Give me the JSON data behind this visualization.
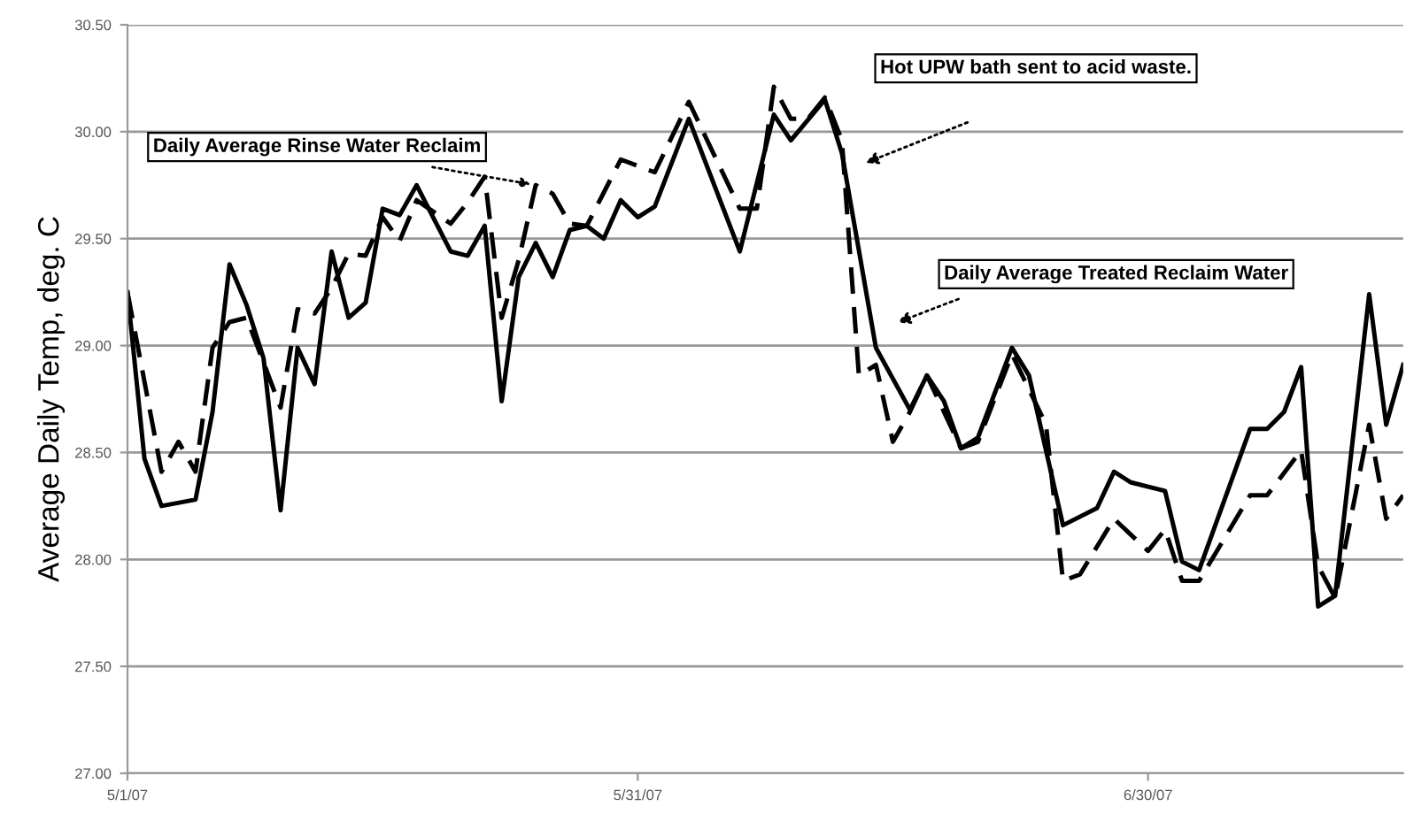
{
  "chart_data": {
    "type": "line",
    "ylabel": "Average Daily Temp, deg. C",
    "xlim": [
      "2007-05-01",
      "2007-07-15"
    ],
    "xticks": [
      {
        "value": "2007-05-01",
        "label": "5/1/07"
      },
      {
        "value": "2007-05-31",
        "label": "5/31/07"
      },
      {
        "value": "2007-06-30",
        "label": "6/30/07"
      }
    ],
    "ylim": [
      27,
      30.5
    ],
    "yticks": [
      {
        "value": 27,
        "label": "27.00"
      },
      {
        "value": 27.5,
        "label": "27.50"
      },
      {
        "value": 28,
        "label": "28.00"
      },
      {
        "value": 28.5,
        "label": "28.50"
      },
      {
        "value": 29,
        "label": "29.00"
      },
      {
        "value": 29.5,
        "label": "29.50"
      },
      {
        "value": 30,
        "label": "30.00"
      },
      {
        "value": 30.5,
        "label": "30.50"
      }
    ],
    "grid": "y",
    "legend": false,
    "series": [
      {
        "color": "#000000",
        "line_style": "solid",
        "x": [
          "2007-05-01",
          "2007-05-02",
          "2007-05-03",
          "2007-05-05",
          "2007-05-06",
          "2007-05-07",
          "2007-05-08",
          "2007-05-09",
          "2007-05-10",
          "2007-05-11",
          "2007-05-12",
          "2007-05-13",
          "2007-05-14",
          "2007-05-15",
          "2007-05-16",
          "2007-05-17",
          "2007-05-18",
          "2007-05-20",
          "2007-05-21",
          "2007-05-22",
          "2007-05-23",
          "2007-05-24",
          "2007-05-25",
          "2007-05-26",
          "2007-05-27",
          "2007-05-28",
          "2007-05-29",
          "2007-05-30",
          "2007-05-31",
          "2007-06-01",
          "2007-06-03",
          "2007-06-06",
          "2007-06-08",
          "2007-06-09",
          "2007-06-11",
          "2007-06-12",
          "2007-06-14",
          "2007-06-16",
          "2007-06-17",
          "2007-06-18",
          "2007-06-19",
          "2007-06-20",
          "2007-06-22",
          "2007-06-23",
          "2007-06-25",
          "2007-06-27",
          "2007-06-28",
          "2007-06-29",
          "2007-07-01",
          "2007-07-02",
          "2007-07-03",
          "2007-07-06",
          "2007-07-07",
          "2007-07-08",
          "2007-07-09",
          "2007-07-10",
          "2007-07-11",
          "2007-07-13",
          "2007-07-14",
          "2007-07-15"
        ],
        "values": [
          29.25,
          28.47,
          28.25,
          28.28,
          28.69,
          29.38,
          29.19,
          28.94,
          28.23,
          28.99,
          28.82,
          29.44,
          29.13,
          29.2,
          29.64,
          29.61,
          29.75,
          29.44,
          29.42,
          29.56,
          28.74,
          29.32,
          29.48,
          29.32,
          29.54,
          29.56,
          29.5,
          29.68,
          29.6,
          29.65,
          30.06,
          29.44,
          30.08,
          29.96,
          30.15,
          29.9,
          28.99,
          28.7,
          28.86,
          28.74,
          28.52,
          28.57,
          28.99,
          28.86,
          28.16,
          28.24,
          28.41,
          28.36,
          28.32,
          27.99,
          27.95,
          28.61,
          28.61,
          28.69,
          28.9,
          27.78,
          27.83,
          29.24,
          28.63,
          28.91
        ]
      },
      {
        "color": "#000000",
        "line_style": "dashed",
        "x": [
          "2007-05-01",
          "2007-05-03",
          "2007-05-04",
          "2007-05-05",
          "2007-05-06",
          "2007-05-07",
          "2007-05-08",
          "2007-05-10",
          "2007-05-11",
          "2007-05-12",
          "2007-05-13",
          "2007-05-14",
          "2007-05-15",
          "2007-05-16",
          "2007-05-17",
          "2007-05-18",
          "2007-05-20",
          "2007-05-21",
          "2007-05-22",
          "2007-05-23",
          "2007-05-24",
          "2007-05-25",
          "2007-05-26",
          "2007-05-27",
          "2007-05-28",
          "2007-05-30",
          "2007-06-01",
          "2007-06-03",
          "2007-06-06",
          "2007-06-07",
          "2007-06-08",
          "2007-06-09",
          "2007-06-10",
          "2007-06-11",
          "2007-06-12",
          "2007-06-13",
          "2007-06-14",
          "2007-06-15",
          "2007-06-16",
          "2007-06-17",
          "2007-06-19",
          "2007-06-20",
          "2007-06-22",
          "2007-06-24",
          "2007-06-25",
          "2007-06-26",
          "2007-06-28",
          "2007-06-30",
          "2007-07-01",
          "2007-07-02",
          "2007-07-03",
          "2007-07-06",
          "2007-07-07",
          "2007-07-09",
          "2007-07-10",
          "2007-07-11",
          "2007-07-13",
          "2007-07-14",
          "2007-07-15"
        ],
        "values": [
          29.25,
          28.41,
          28.55,
          28.41,
          28.99,
          29.11,
          29.13,
          28.71,
          29.17,
          29.15,
          29.27,
          29.43,
          29.42,
          29.6,
          29.49,
          29.68,
          29.57,
          29.67,
          29.79,
          29.13,
          29.4,
          29.75,
          29.71,
          29.57,
          29.56,
          29.87,
          29.81,
          30.14,
          29.64,
          29.64,
          30.21,
          30.06,
          30.06,
          30.16,
          29.96,
          28.86,
          28.91,
          28.55,
          28.69,
          28.86,
          28.52,
          28.55,
          28.96,
          28.63,
          27.9,
          27.93,
          28.19,
          28.04,
          28.14,
          27.9,
          27.9,
          28.3,
          28.3,
          28.51,
          27.97,
          27.82,
          28.63,
          28.19,
          28.3
        ]
      }
    ],
    "annotations": [
      {
        "text": "Daily Average Rinse Water Reclaim",
        "x": "2007-05-25",
        "y": 29.75
      },
      "Hot UPW bath sent to acid waste.",
      "Daily Average Treated Reclaim Water"
    ]
  }
}
